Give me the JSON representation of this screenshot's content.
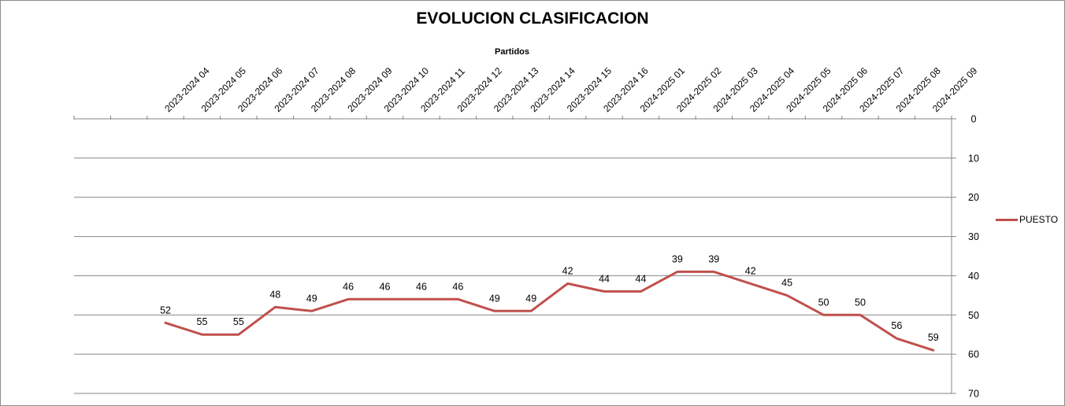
{
  "chart_data": {
    "type": "line",
    "title": "EVOLUCION CLASIFICACION",
    "xlabel": "Partidos",
    "ylabel": "",
    "categories": [
      "",
      "",
      "2023-2024 04",
      "2023-2024 05",
      "2023-2024 06",
      "2023-2024 07",
      "2023-2024 08",
      "2023-2024 09",
      "2023-2024 10",
      "2023-2024 11",
      "2023-2024 12",
      "2023-2024 13",
      "2023-2024 14",
      "2023-2024 15",
      "2023-2024 16",
      "2024-2025 01",
      "2024-2025 02",
      "2024-2025 03",
      "2024-2025 04",
      "2024-2025 05",
      "2024-2025 06",
      "2024-2025 07",
      "2024-2025 08",
      "2024-2025 09"
    ],
    "series": [
      {
        "name": "PUESTO",
        "color": "#c0504d",
        "values": [
          null,
          null,
          52,
          55,
          55,
          48,
          49,
          46,
          46,
          46,
          46,
          49,
          49,
          42,
          44,
          44,
          39,
          39,
          42,
          45,
          50,
          50,
          56,
          59
        ]
      }
    ],
    "ylim": [
      0,
      70
    ],
    "y_reversed": true,
    "y_ticks": [
      "0",
      "10",
      "20",
      "30",
      "40",
      "50",
      "60",
      "70"
    ],
    "y_axis_position": "right",
    "x_axis_position": "top",
    "grid": true,
    "legend_position": "right"
  }
}
